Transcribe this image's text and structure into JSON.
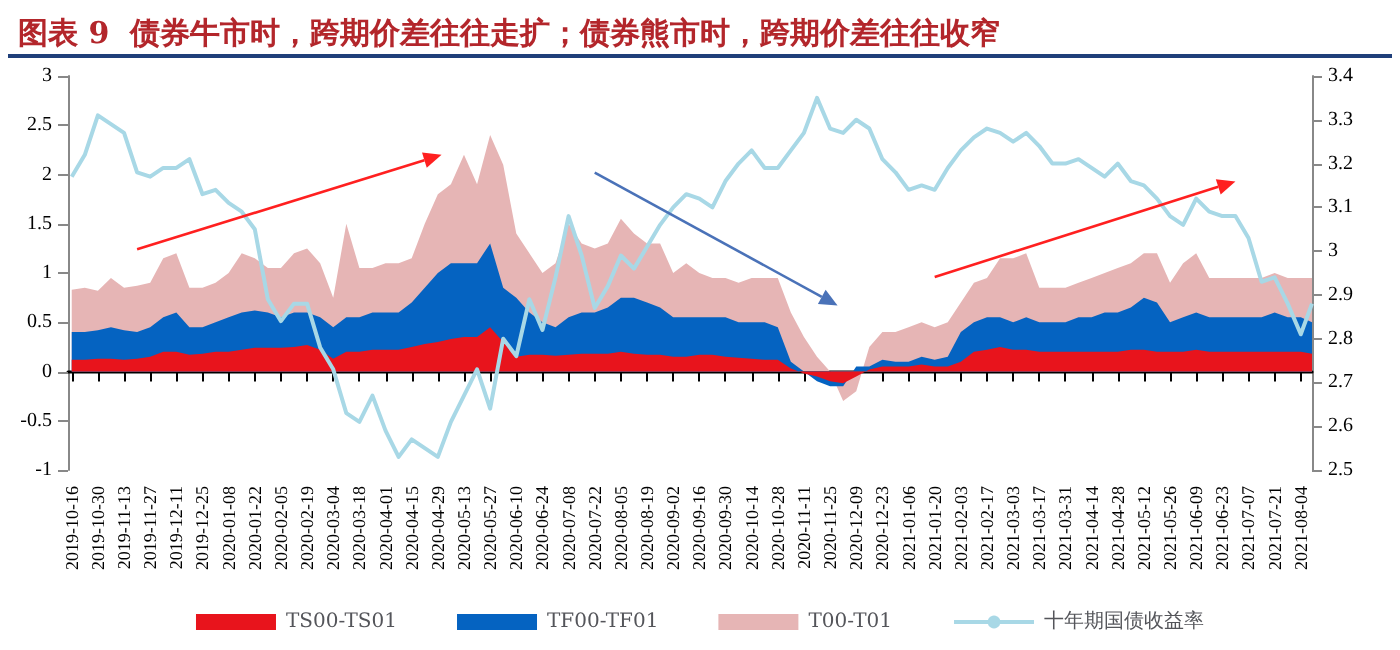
{
  "chart_data": {
    "type": "area",
    "title": "图表 9  债券牛市时，跨期价差往往走扩；债券熊市时，跨期价差往往收窄",
    "x": [
      "2019-10-16",
      "2019-10-23",
      "2019-10-30",
      "2019-11-06",
      "2019-11-13",
      "2019-11-20",
      "2019-11-27",
      "2019-12-04",
      "2019-12-11",
      "2019-12-18",
      "2019-12-25",
      "2020-01-01",
      "2020-01-08",
      "2020-01-15",
      "2020-01-22",
      "2020-01-29",
      "2020-02-05",
      "2020-02-12",
      "2020-02-19",
      "2020-02-26",
      "2020-03-04",
      "2020-03-11",
      "2020-03-18",
      "2020-03-25",
      "2020-04-01",
      "2020-04-08",
      "2020-04-15",
      "2020-04-22",
      "2020-04-29",
      "2020-05-06",
      "2020-05-13",
      "2020-05-20",
      "2020-05-27",
      "2020-06-03",
      "2020-06-10",
      "2020-06-17",
      "2020-06-24",
      "2020-07-01",
      "2020-07-08",
      "2020-07-15",
      "2020-07-22",
      "2020-07-29",
      "2020-08-05",
      "2020-08-12",
      "2020-08-19",
      "2020-08-26",
      "2020-09-02",
      "2020-09-09",
      "2020-09-16",
      "2020-09-23",
      "2020-09-30",
      "2020-10-07",
      "2020-10-14",
      "2020-10-21",
      "2020-10-28",
      "2020-11-04",
      "2020-11-11",
      "2020-11-18",
      "2020-11-25",
      "2020-12-02",
      "2020-12-09",
      "2020-12-16",
      "2020-12-23",
      "2020-12-30",
      "2021-01-06",
      "2021-01-13",
      "2021-01-20",
      "2021-01-27",
      "2021-02-03",
      "2021-02-10",
      "2021-02-17",
      "2021-02-24",
      "2021-03-03",
      "2021-03-10",
      "2021-03-17",
      "2021-03-24",
      "2021-03-31",
      "2021-04-07",
      "2021-04-14",
      "2021-04-21",
      "2021-04-28",
      "2021-05-05",
      "2021-05-12",
      "2021-05-19",
      "2021-05-26",
      "2021-06-02",
      "2021-06-09",
      "2021-06-16",
      "2021-06-23",
      "2021-06-30",
      "2021-07-07",
      "2021-07-14",
      "2021-07-21",
      "2021-07-28",
      "2021-08-04",
      "2021-08-10"
    ],
    "series": [
      {
        "name": "TS00-TS01",
        "color": "#e8141c",
        "values": [
          0.12,
          0.12,
          0.13,
          0.13,
          0.12,
          0.13,
          0.15,
          0.2,
          0.2,
          0.17,
          0.18,
          0.2,
          0.2,
          0.22,
          0.24,
          0.24,
          0.24,
          0.25,
          0.27,
          0.22,
          0.13,
          0.2,
          0.2,
          0.22,
          0.22,
          0.22,
          0.25,
          0.28,
          0.3,
          0.33,
          0.35,
          0.35,
          0.45,
          0.3,
          0.15,
          0.17,
          0.17,
          0.16,
          0.17,
          0.18,
          0.18,
          0.18,
          0.2,
          0.18,
          0.17,
          0.17,
          0.15,
          0.15,
          0.17,
          0.17,
          0.15,
          0.14,
          0.13,
          0.12,
          0.12,
          0.03,
          -0.02,
          -0.05,
          -0.1,
          -0.12,
          -0.05,
          0.02,
          0.05,
          0.05,
          0.05,
          0.07,
          0.05,
          0.05,
          0.1,
          0.2,
          0.22,
          0.25,
          0.22,
          0.22,
          0.2,
          0.2,
          0.2,
          0.2,
          0.2,
          0.2,
          0.2,
          0.22,
          0.22,
          0.2,
          0.2,
          0.2,
          0.22,
          0.2,
          0.2,
          0.2,
          0.2,
          0.2,
          0.2,
          0.2,
          0.2,
          0.18
        ]
      },
      {
        "name": "TF00-TF01",
        "color": "#0563c1",
        "values": [
          0.4,
          0.4,
          0.42,
          0.45,
          0.42,
          0.4,
          0.45,
          0.55,
          0.6,
          0.45,
          0.45,
          0.5,
          0.55,
          0.6,
          0.62,
          0.6,
          0.55,
          0.6,
          0.6,
          0.55,
          0.45,
          0.55,
          0.55,
          0.6,
          0.6,
          0.6,
          0.7,
          0.85,
          1.0,
          1.1,
          1.1,
          1.1,
          1.3,
          0.85,
          0.75,
          0.6,
          0.5,
          0.45,
          0.55,
          0.6,
          0.6,
          0.65,
          0.75,
          0.75,
          0.7,
          0.65,
          0.55,
          0.55,
          0.55,
          0.55,
          0.55,
          0.5,
          0.5,
          0.5,
          0.45,
          0.1,
          0,
          -0.1,
          -0.15,
          -0.15,
          0.05,
          0.05,
          0.12,
          0.1,
          0.1,
          0.15,
          0.12,
          0.15,
          0.4,
          0.5,
          0.55,
          0.55,
          0.5,
          0.55,
          0.5,
          0.5,
          0.5,
          0.55,
          0.55,
          0.6,
          0.6,
          0.65,
          0.75,
          0.7,
          0.5,
          0.55,
          0.6,
          0.55,
          0.55,
          0.55,
          0.55,
          0.55,
          0.6,
          0.55,
          0.55,
          0.5
        ]
      },
      {
        "name": "T00-T01",
        "color": "#e6b5b5",
        "values": [
          0.83,
          0.85,
          0.82,
          0.95,
          0.85,
          0.87,
          0.9,
          1.15,
          1.2,
          0.85,
          0.85,
          0.9,
          1.0,
          1.2,
          1.15,
          1.05,
          1.05,
          1.2,
          1.25,
          1.1,
          0.75,
          1.5,
          1.05,
          1.05,
          1.1,
          1.1,
          1.15,
          1.5,
          1.8,
          1.9,
          2.2,
          1.9,
          2.4,
          2.1,
          1.4,
          1.2,
          1.0,
          1.1,
          1.5,
          1.3,
          1.25,
          1.3,
          1.55,
          1.4,
          1.3,
          1.3,
          1.0,
          1.1,
          1.0,
          0.95,
          0.95,
          0.9,
          0.95,
          0.95,
          0.95,
          0.6,
          0.35,
          0.15,
          0,
          -0.3,
          -0.2,
          0.25,
          0.4,
          0.4,
          0.45,
          0.5,
          0.45,
          0.5,
          0.7,
          0.9,
          0.95,
          1.15,
          1.15,
          1.2,
          0.85,
          0.85,
          0.85,
          0.9,
          0.95,
          1.0,
          1.05,
          1.1,
          1.2,
          1.2,
          0.9,
          1.1,
          1.2,
          0.95,
          0.95,
          0.95,
          0.95,
          0.95,
          1.0,
          0.95,
          0.95,
          0.95
        ]
      },
      {
        "name": "十年期国债收益率",
        "type": "line",
        "axis": "y2",
        "color": "#a8d8e6",
        "values": [
          3.17,
          3.22,
          3.31,
          3.29,
          3.27,
          3.18,
          3.17,
          3.19,
          3.19,
          3.21,
          3.13,
          3.14,
          3.11,
          3.09,
          3.05,
          2.89,
          2.84,
          2.88,
          2.88,
          2.78,
          2.73,
          2.63,
          2.61,
          2.67,
          2.59,
          2.53,
          2.57,
          2.55,
          2.53,
          2.61,
          2.67,
          2.73,
          2.64,
          2.8,
          2.76,
          2.89,
          2.82,
          2.94,
          3.08,
          2.99,
          2.87,
          2.92,
          2.99,
          2.96,
          3.01,
          3.06,
          3.1,
          3.13,
          3.12,
          3.1,
          3.16,
          3.2,
          3.23,
          3.19,
          3.19,
          3.23,
          3.27,
          3.35,
          3.28,
          3.27,
          3.3,
          3.28,
          3.21,
          3.18,
          3.14,
          3.15,
          3.14,
          3.19,
          3.23,
          3.26,
          3.28,
          3.27,
          3.25,
          3.27,
          3.24,
          3.2,
          3.2,
          3.21,
          3.19,
          3.17,
          3.2,
          3.16,
          3.15,
          3.12,
          3.08,
          3.06,
          3.12,
          3.09,
          3.08,
          3.08,
          3.03,
          2.93,
          2.94,
          2.88,
          2.81,
          2.88
        ]
      }
    ],
    "xlim": [
      "2019-10-14",
      "2021-08-10"
    ],
    "xticks": [
      "2019-10-16",
      "2019-10-30",
      "2019-11-13",
      "2019-11-27",
      "2019-12-11",
      "2019-12-25",
      "2020-01-08",
      "2020-01-22",
      "2020-02-05",
      "2020-02-19",
      "2020-03-04",
      "2020-03-18",
      "2020-04-01",
      "2020-04-15",
      "2020-04-29",
      "2020-05-13",
      "2020-05-27",
      "2020-06-10",
      "2020-06-24",
      "2020-07-08",
      "2020-07-22",
      "2020-08-05",
      "2020-08-19",
      "2020-09-02",
      "2020-09-16",
      "2020-09-30",
      "2020-10-14",
      "2020-10-28",
      "2020-11-11",
      "2020-11-25",
      "2020-12-09",
      "2020-12-23",
      "2021-01-06",
      "2021-01-20",
      "2021-02-03",
      "2021-02-17",
      "2021-03-03",
      "2021-03-17",
      "2021-03-31",
      "2021-04-14",
      "2021-04-28",
      "2021-05-12",
      "2021-05-26",
      "2021-06-09",
      "2021-06-23",
      "2021-07-07",
      "2021-07-21",
      "2021-08-04"
    ],
    "ylim": [
      -1,
      3
    ],
    "yticks": [
      -1,
      -0.5,
      0,
      0.5,
      1,
      1.5,
      2,
      2.5,
      3
    ],
    "y2lim": [
      2.5,
      3.4
    ],
    "y2ticks": [
      2.5,
      2.6,
      2.7,
      2.8,
      2.9,
      3,
      3.1,
      3.2,
      3.3,
      3.4
    ],
    "legend": "bottom"
  }
}
